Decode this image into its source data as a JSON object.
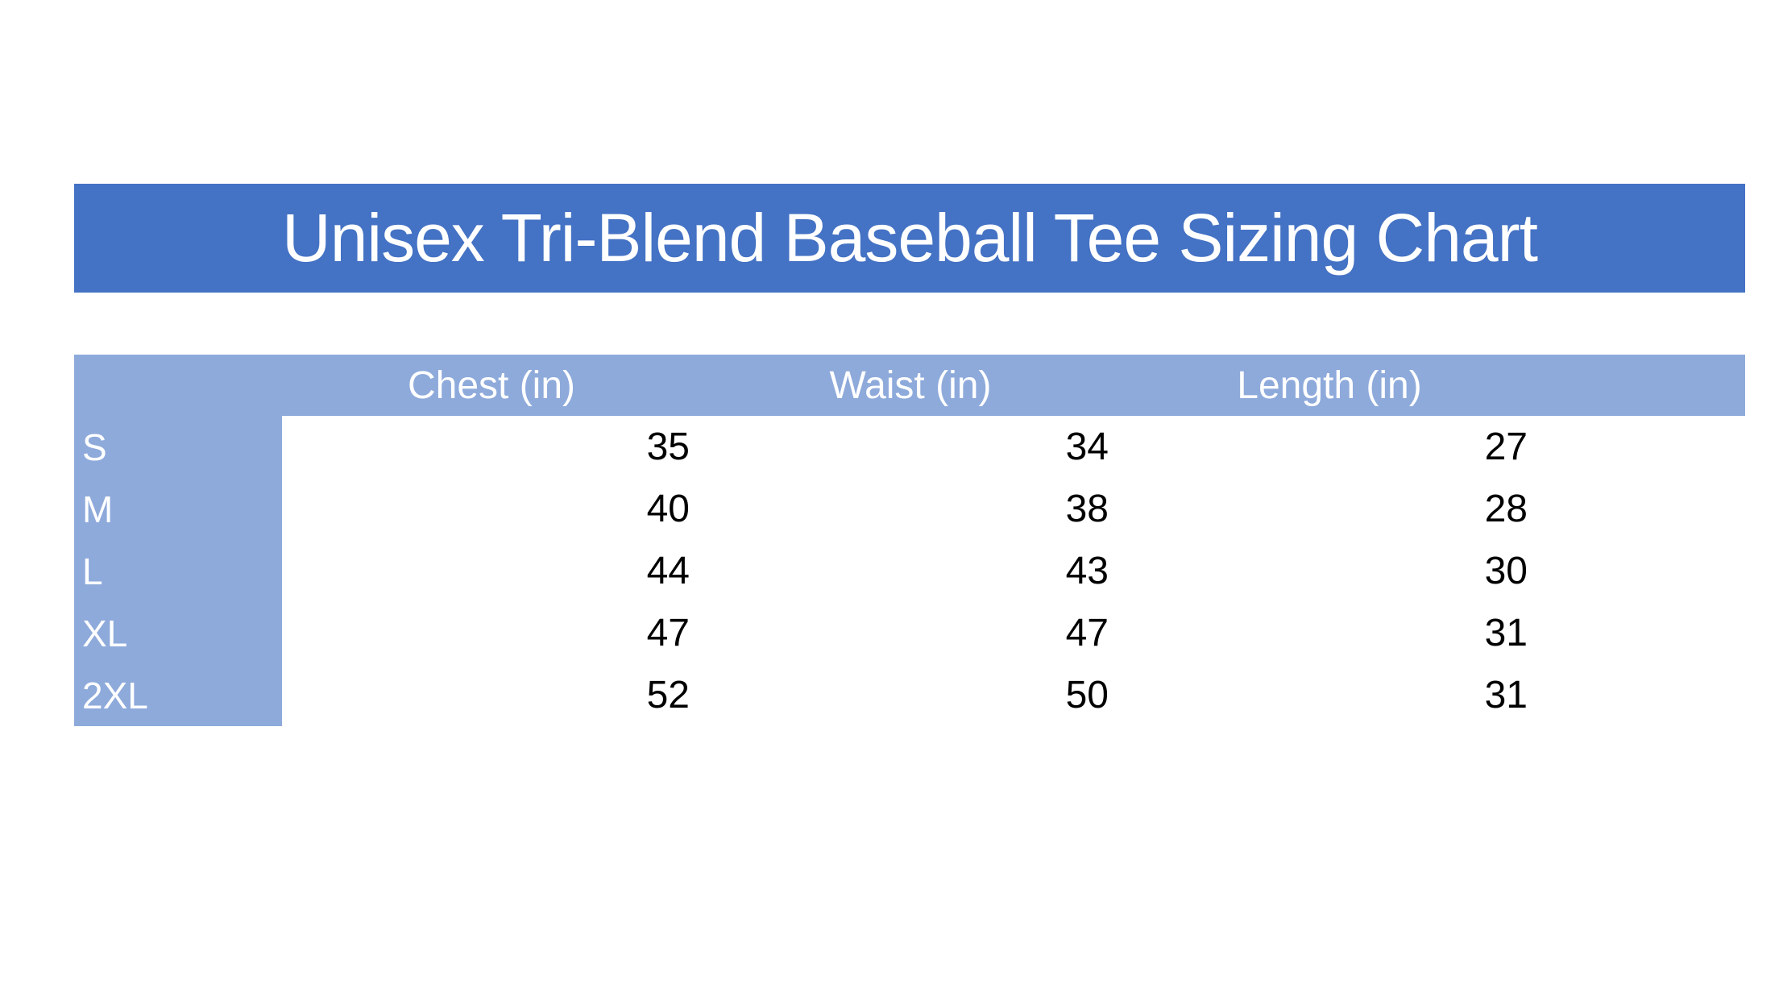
{
  "title": "Unisex Tri-Blend Baseball Tee Sizing Chart",
  "colors": {
    "title_bg": "#4472c4",
    "header_bg": "#8eaadb"
  },
  "table": {
    "columns": [
      "Chest (in)",
      "Waist (in)",
      "Length (in)"
    ],
    "rows": [
      {
        "size": "S",
        "values": [
          "35",
          "34",
          "27"
        ]
      },
      {
        "size": "M",
        "values": [
          "40",
          "38",
          "28"
        ]
      },
      {
        "size": "L",
        "values": [
          "44",
          "43",
          "30"
        ]
      },
      {
        "size": "XL",
        "values": [
          "47",
          "47",
          "31"
        ]
      },
      {
        "size": "2XL",
        "values": [
          "52",
          "50",
          "31"
        ]
      }
    ]
  }
}
